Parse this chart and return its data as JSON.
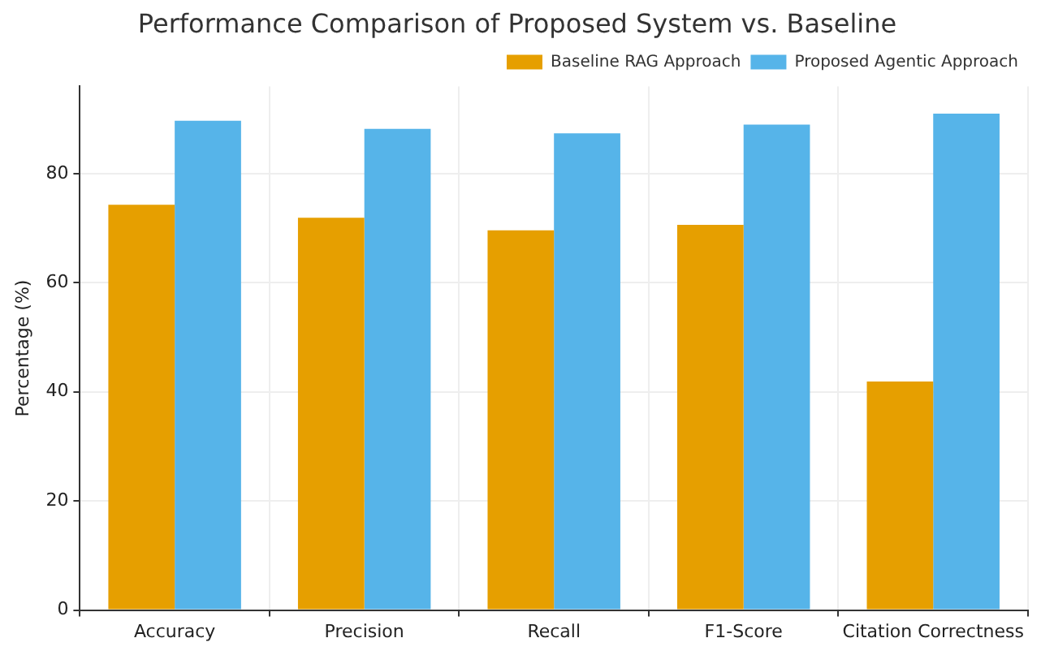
{
  "chart_data": {
    "type": "bar",
    "title": "Performance Comparison of Proposed System vs. Baseline",
    "ylabel": "Percentage (%)",
    "categories": [
      "Accuracy",
      "Precision",
      "Recall",
      "F1-Score",
      "Citation Correctness"
    ],
    "series": [
      {
        "name": "Baseline RAG Approach",
        "color": "#e69f00",
        "values": [
          74.3,
          71.9,
          69.6,
          70.6,
          41.9
        ]
      },
      {
        "name": "Proposed Agentic Approach",
        "color": "#56b4e9",
        "values": [
          89.7,
          88.2,
          87.4,
          89,
          91
        ]
      }
    ],
    "ylim": [
      0,
      96
    ],
    "yticks": [
      0,
      20,
      40,
      60,
      80
    ],
    "grid": true,
    "legend": "top right"
  }
}
